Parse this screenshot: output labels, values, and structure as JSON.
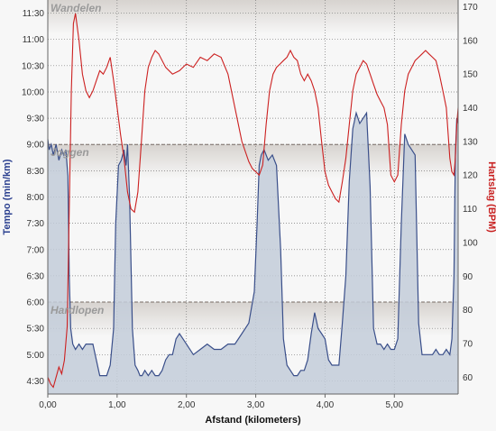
{
  "chart_data": {
    "type": "line",
    "xlabel": "Afstand (kilometers)",
    "ylabel_left": "Tempo (min/km)",
    "ylabel_right": "Hartslag (BPM)",
    "x_ticks": [
      "0,00",
      "1,00",
      "2,00",
      "3,00",
      "4,00",
      "5,00"
    ],
    "y_left_ticks": [
      "4:30",
      "5:00",
      "5:30",
      "6:00",
      "6:30",
      "7:00",
      "7:30",
      "8:00",
      "8:30",
      "9:00",
      "9:30",
      "10:00",
      "10:30",
      "11:00",
      "11:30"
    ],
    "y_right_ticks": [
      "60",
      "70",
      "80",
      "90",
      "100",
      "110",
      "120",
      "130",
      "140",
      "150",
      "160",
      "170"
    ],
    "xlim": [
      0,
      5.92
    ],
    "ylim_left_minutes": [
      4.25,
      11.75
    ],
    "ylim_right": [
      55,
      172
    ],
    "zones": [
      {
        "label": "Wandelen",
        "from_min": 9.0,
        "to_min": 11.75
      },
      {
        "label": "Joggen",
        "from_min": 6.0,
        "to_min": 9.0
      },
      {
        "label": "Hardlopen",
        "from_min": 4.25,
        "to_min": 6.0
      }
    ],
    "series": [
      {
        "axis": "left",
        "color": "#3a4f8a",
        "fill": "#c3ccd9",
        "x": [
          0.0,
          0.02,
          0.05,
          0.08,
          0.12,
          0.16,
          0.2,
          0.23,
          0.26,
          0.29,
          0.31,
          0.33,
          0.36,
          0.4,
          0.45,
          0.5,
          0.55,
          0.6,
          0.65,
          0.7,
          0.75,
          0.8,
          0.85,
          0.9,
          0.95,
          0.98,
          1.02,
          1.06,
          1.1,
          1.13,
          1.15,
          1.18,
          1.22,
          1.26,
          1.3,
          1.33,
          1.36,
          1.4,
          1.45,
          1.5,
          1.55,
          1.6,
          1.65,
          1.7,
          1.75,
          1.8,
          1.85,
          1.9,
          1.95,
          2.0,
          2.1,
          2.2,
          2.3,
          2.4,
          2.5,
          2.6,
          2.7,
          2.8,
          2.9,
          2.98,
          3.02,
          3.05,
          3.08,
          3.12,
          3.18,
          3.24,
          3.3,
          3.36,
          3.4,
          3.45,
          3.5,
          3.55,
          3.6,
          3.65,
          3.7,
          3.75,
          3.8,
          3.85,
          3.9,
          3.95,
          4.0,
          4.05,
          4.1,
          4.15,
          4.2,
          4.25,
          4.3,
          4.35,
          4.4,
          4.45,
          4.5,
          4.55,
          4.6,
          4.65,
          4.7,
          4.75,
          4.8,
          4.85,
          4.9,
          4.95,
          5.0,
          5.05,
          5.1,
          5.15,
          5.2,
          5.25,
          5.3,
          5.35,
          5.4,
          5.45,
          5.5,
          5.55,
          5.6,
          5.65,
          5.7,
          5.75,
          5.8,
          5.83,
          5.86,
          5.88,
          5.9,
          5.92
        ],
        "values": [
          9.1,
          8.9,
          9.0,
          8.8,
          9.0,
          8.7,
          8.9,
          8.8,
          8.9,
          8.4,
          6.5,
          5.5,
          5.2,
          5.1,
          5.2,
          5.1,
          5.2,
          5.2,
          5.2,
          4.9,
          4.6,
          4.6,
          4.6,
          4.8,
          5.5,
          7.5,
          8.6,
          8.7,
          8.9,
          8.6,
          9.0,
          8.0,
          5.5,
          4.8,
          4.7,
          4.6,
          4.6,
          4.7,
          4.6,
          4.7,
          4.6,
          4.6,
          4.7,
          4.9,
          5.0,
          5.0,
          5.3,
          5.4,
          5.3,
          5.2,
          5.0,
          5.1,
          5.2,
          5.1,
          5.1,
          5.2,
          5.2,
          5.4,
          5.6,
          6.2,
          7.5,
          8.6,
          8.8,
          8.9,
          8.7,
          8.8,
          8.6,
          7.0,
          5.3,
          4.8,
          4.7,
          4.6,
          4.6,
          4.7,
          4.7,
          4.9,
          5.4,
          5.8,
          5.5,
          5.4,
          5.3,
          4.9,
          4.8,
          4.8,
          4.8,
          5.6,
          6.5,
          8.3,
          9.3,
          9.6,
          9.4,
          9.5,
          9.6,
          8.2,
          5.5,
          5.2,
          5.2,
          5.1,
          5.2,
          5.1,
          5.1,
          5.3,
          7.5,
          9.2,
          9.0,
          8.9,
          8.8,
          5.6,
          5.0,
          5.0,
          5.0,
          5.0,
          5.1,
          5.0,
          5.0,
          5.1,
          5.0,
          5.3,
          6.5,
          8.8,
          9.5,
          9.4
        ]
      },
      {
        "axis": "right",
        "color": "#cc2020",
        "x": [
          0.0,
          0.04,
          0.08,
          0.12,
          0.16,
          0.2,
          0.24,
          0.28,
          0.31,
          0.34,
          0.37,
          0.4,
          0.45,
          0.5,
          0.55,
          0.6,
          0.65,
          0.7,
          0.75,
          0.8,
          0.85,
          0.9,
          0.95,
          1.0,
          1.05,
          1.1,
          1.15,
          1.2,
          1.25,
          1.3,
          1.35,
          1.4,
          1.45,
          1.5,
          1.55,
          1.6,
          1.7,
          1.8,
          1.9,
          2.0,
          2.1,
          2.2,
          2.3,
          2.4,
          2.5,
          2.6,
          2.7,
          2.8,
          2.9,
          2.95,
          3.0,
          3.05,
          3.1,
          3.15,
          3.2,
          3.25,
          3.3,
          3.35,
          3.4,
          3.45,
          3.5,
          3.55,
          3.6,
          3.65,
          3.7,
          3.75,
          3.8,
          3.85,
          3.9,
          3.95,
          4.0,
          4.05,
          4.1,
          4.15,
          4.2,
          4.25,
          4.3,
          4.35,
          4.4,
          4.45,
          4.5,
          4.55,
          4.6,
          4.65,
          4.7,
          4.75,
          4.8,
          4.85,
          4.9,
          4.95,
          5.0,
          5.05,
          5.1,
          5.15,
          5.2,
          5.25,
          5.3,
          5.35,
          5.4,
          5.45,
          5.5,
          5.55,
          5.6,
          5.65,
          5.7,
          5.75,
          5.8,
          5.83,
          5.86,
          5.88,
          5.9,
          5.92
        ],
        "values": [
          60,
          58,
          57,
          60,
          63,
          61,
          65,
          75,
          110,
          145,
          165,
          168,
          160,
          150,
          145,
          143,
          145,
          148,
          151,
          150,
          152,
          155,
          148,
          140,
          132,
          125,
          115,
          110,
          109,
          115,
          130,
          145,
          152,
          155,
          157,
          156,
          152,
          150,
          151,
          153,
          152,
          155,
          154,
          156,
          155,
          150,
          140,
          130,
          124,
          122,
          121,
          120,
          123,
          135,
          145,
          150,
          152,
          153,
          154,
          155,
          157,
          155,
          154,
          150,
          148,
          150,
          148,
          145,
          140,
          130,
          121,
          117,
          115,
          113,
          112,
          118,
          125,
          135,
          145,
          150,
          152,
          154,
          153,
          150,
          147,
          144,
          142,
          140,
          135,
          120,
          118,
          120,
          135,
          145,
          150,
          152,
          154,
          155,
          156,
          157,
          156,
          155,
          154,
          150,
          145,
          140,
          125,
          121,
          120,
          125,
          135,
          140
        ]
      }
    ]
  }
}
